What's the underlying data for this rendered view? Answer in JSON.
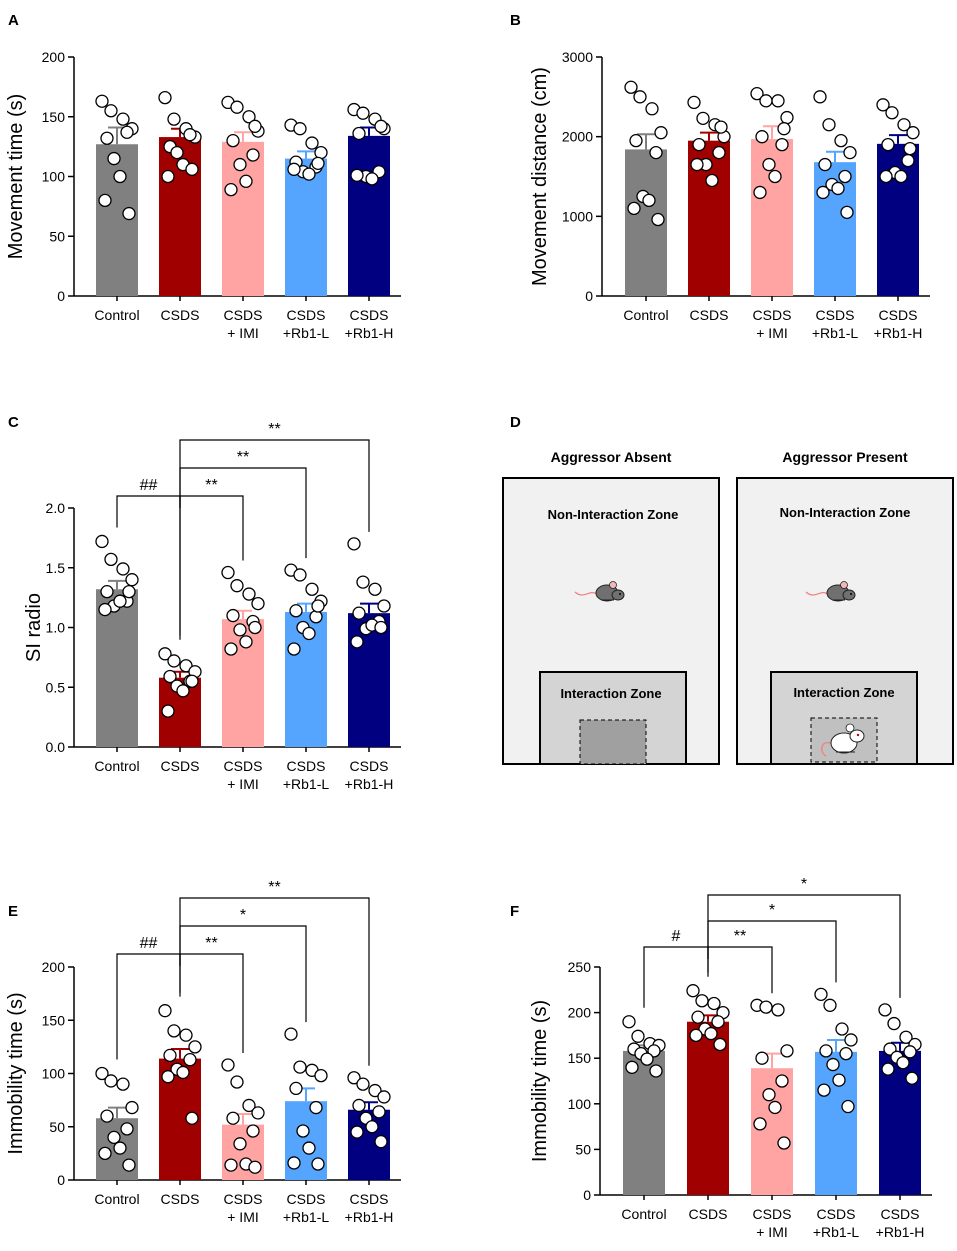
{
  "colors": [
    "#808080",
    "#a00000",
    "#ffa3a3",
    "#55a5ff",
    "#000080"
  ],
  "chart_data": [
    {
      "panel": "A",
      "type": "bar",
      "ylabel": "Movement time (s)",
      "ylim": [
        0,
        200
      ],
      "yticks": [
        0,
        50,
        100,
        150,
        200
      ],
      "categories": [
        [
          "Control"
        ],
        [
          "CSDS"
        ],
        [
          "CSDS",
          "+ IMI"
        ],
        [
          "CSDS",
          "+Rb1-L"
        ],
        [
          "CSDS",
          "+Rb1-H"
        ]
      ],
      "values": [
        127,
        133,
        129,
        115,
        134
      ],
      "errors": [
        14,
        7,
        8,
        6,
        7
      ],
      "points": [
        [
          163,
          155,
          148,
          140,
          132,
          137,
          115,
          100,
          80,
          69
        ],
        [
          166,
          148,
          140,
          133,
          125,
          135,
          120,
          110,
          100,
          106
        ],
        [
          162,
          158,
          150,
          138,
          130,
          118,
          110,
          96,
          89,
          142
        ],
        [
          143,
          140,
          128,
          120,
          112,
          108,
          104,
          102,
          106,
          111
        ],
        [
          156,
          153,
          148,
          140,
          136,
          104,
          100,
          98,
          101,
          142
        ]
      ],
      "sig": []
    },
    {
      "panel": "B",
      "type": "bar",
      "ylabel": "Movement distance (cm)",
      "ylim": [
        0,
        3000
      ],
      "yticks": [
        0,
        1000,
        2000,
        3000
      ],
      "categories": [
        [
          "Control"
        ],
        [
          "CSDS"
        ],
        [
          "CSDS",
          "+ IMI"
        ],
        [
          "CSDS",
          "+Rb1-L"
        ],
        [
          "CSDS",
          "+Rb1-H"
        ]
      ],
      "values": [
        1840,
        1950,
        1970,
        1680,
        1910
      ],
      "errors": [
        190,
        100,
        160,
        130,
        110
      ],
      "points": [
        [
          2620,
          2500,
          2350,
          2050,
          1950,
          1800,
          1250,
          1200,
          1100,
          960
        ],
        [
          2430,
          2230,
          2150,
          2000,
          1900,
          1800,
          1650,
          1450,
          1650,
          2120
        ],
        [
          2540,
          2450,
          2450,
          2240,
          2000,
          1900,
          1650,
          1500,
          1300,
          2100
        ],
        [
          2500,
          2150,
          1950,
          1800,
          1650,
          1500,
          1400,
          1350,
          1300,
          1050
        ],
        [
          2400,
          2300,
          2150,
          2050,
          1900,
          1700,
          1550,
          1500,
          1500,
          1850
        ]
      ],
      "sig": []
    },
    {
      "panel": "C",
      "type": "bar",
      "ylabel": "SI radio",
      "ylim": [
        0,
        2.0
      ],
      "yticks": [
        0.0,
        0.5,
        1.0,
        1.5,
        2.0
      ],
      "ytick_labels": [
        "0.0",
        "0.5",
        "1.0",
        "1.5",
        "2.0"
      ],
      "categories": [
        [
          "Control"
        ],
        [
          "CSDS"
        ],
        [
          "CSDS",
          "+ IMI"
        ],
        [
          "CSDS",
          "+Rb1-L"
        ],
        [
          "CSDS",
          "+Rb1-H"
        ]
      ],
      "values": [
        1.32,
        0.58,
        1.07,
        1.13,
        1.12
      ],
      "errors": [
        0.07,
        0.05,
        0.07,
        0.07,
        0.08
      ],
      "points": [
        [
          1.72,
          1.57,
          1.49,
          1.4,
          1.3,
          1.22,
          1.18,
          1.22,
          1.15,
          1.3
        ],
        [
          0.78,
          0.72,
          0.68,
          0.63,
          0.59,
          0.55,
          0.51,
          0.47,
          0.3,
          0.55
        ],
        [
          1.46,
          1.35,
          1.28,
          1.2,
          1.1,
          1.05,
          0.98,
          0.88,
          0.82,
          1.0
        ],
        [
          1.48,
          1.44,
          1.32,
          1.22,
          1.14,
          1.09,
          1.0,
          0.95,
          0.82,
          1.18
        ],
        [
          1.7,
          1.38,
          1.32,
          1.18,
          1.12,
          1.05,
          0.99,
          1.02,
          0.88,
          1.0
        ]
      ],
      "sig": [
        {
          "from": 0,
          "to": 1,
          "label": "##",
          "level": 0
        },
        {
          "from": 1,
          "to": 2,
          "label": "**",
          "level": 0
        },
        {
          "from": 1,
          "to": 3,
          "label": "**",
          "level": 1
        },
        {
          "from": 1,
          "to": 4,
          "label": "**",
          "level": 2
        }
      ]
    },
    {
      "panel": "E",
      "type": "bar",
      "ylabel": "Immobility time (s)",
      "ylim": [
        0,
        200
      ],
      "yticks": [
        0,
        50,
        100,
        150,
        200
      ],
      "categories": [
        [
          "Control"
        ],
        [
          "CSDS"
        ],
        [
          "CSDS",
          "+ IMI"
        ],
        [
          "CSDS",
          "+Rb1-L"
        ],
        [
          "CSDS",
          "+Rb1-H"
        ]
      ],
      "values": [
        58,
        114,
        52,
        74,
        66
      ],
      "errors": [
        10,
        9,
        10,
        12,
        7
      ],
      "points": [
        [
          100,
          93,
          90,
          68,
          60,
          48,
          40,
          30,
          25,
          14
        ],
        [
          159,
          140,
          136,
          125,
          117,
          113,
          104,
          101,
          97,
          58
        ],
        [
          108,
          92,
          70,
          63,
          58,
          46,
          34,
          15,
          14,
          12
        ],
        [
          137,
          106,
          103,
          98,
          86,
          68,
          46,
          30,
          16,
          15
        ],
        [
          96,
          90,
          84,
          78,
          70,
          64,
          58,
          50,
          45,
          36
        ]
      ],
      "sig": [
        {
          "from": 0,
          "to": 1,
          "label": "##",
          "level": 0
        },
        {
          "from": 1,
          "to": 2,
          "label": "**",
          "level": 0
        },
        {
          "from": 1,
          "to": 3,
          "label": "*",
          "level": 1
        },
        {
          "from": 1,
          "to": 4,
          "label": "**",
          "level": 2
        }
      ]
    },
    {
      "panel": "F",
      "type": "bar",
      "ylabel": "Immobility time (s)",
      "ylim": [
        0,
        250
      ],
      "yticks": [
        0,
        50,
        100,
        150,
        200,
        250
      ],
      "categories": [
        [
          "Control"
        ],
        [
          "CSDS"
        ],
        [
          "CSDS",
          "+ IMI"
        ],
        [
          "CSDS",
          "+Rb1-L"
        ],
        [
          "CSDS",
          "+Rb1-H"
        ]
      ],
      "values": [
        158,
        190,
        139,
        157,
        158
      ],
      "errors": [
        6,
        7,
        16,
        13,
        9
      ],
      "points": [
        [
          190,
          174,
          166,
          164,
          160,
          158,
          155,
          149,
          140,
          136
        ],
        [
          224,
          213,
          210,
          200,
          195,
          190,
          182,
          177,
          175,
          165
        ],
        [
          208,
          206,
          203,
          158,
          150,
          125,
          110,
          96,
          78,
          57
        ],
        [
          220,
          208,
          182,
          170,
          158,
          155,
          143,
          126,
          115,
          97
        ],
        [
          203,
          188,
          173,
          165,
          160,
          157,
          151,
          145,
          138,
          128
        ]
      ],
      "sig": [
        {
          "from": 0,
          "to": 1,
          "label": "#",
          "level": 0
        },
        {
          "from": 1,
          "to": 2,
          "label": "**",
          "level": 0
        },
        {
          "from": 1,
          "to": 3,
          "label": "*",
          "level": 1
        },
        {
          "from": 1,
          "to": 4,
          "label": "*",
          "level": 2
        }
      ]
    }
  ],
  "panel_d": {
    "letter": "D",
    "left": {
      "title": "Aggressor Absent",
      "non_interaction": "Non-Interaction Zone",
      "interaction": "Interaction Zone"
    },
    "right": {
      "title": "Aggressor Present",
      "non_interaction": "Non-Interaction Zone",
      "interaction": "Interaction Zone"
    }
  }
}
